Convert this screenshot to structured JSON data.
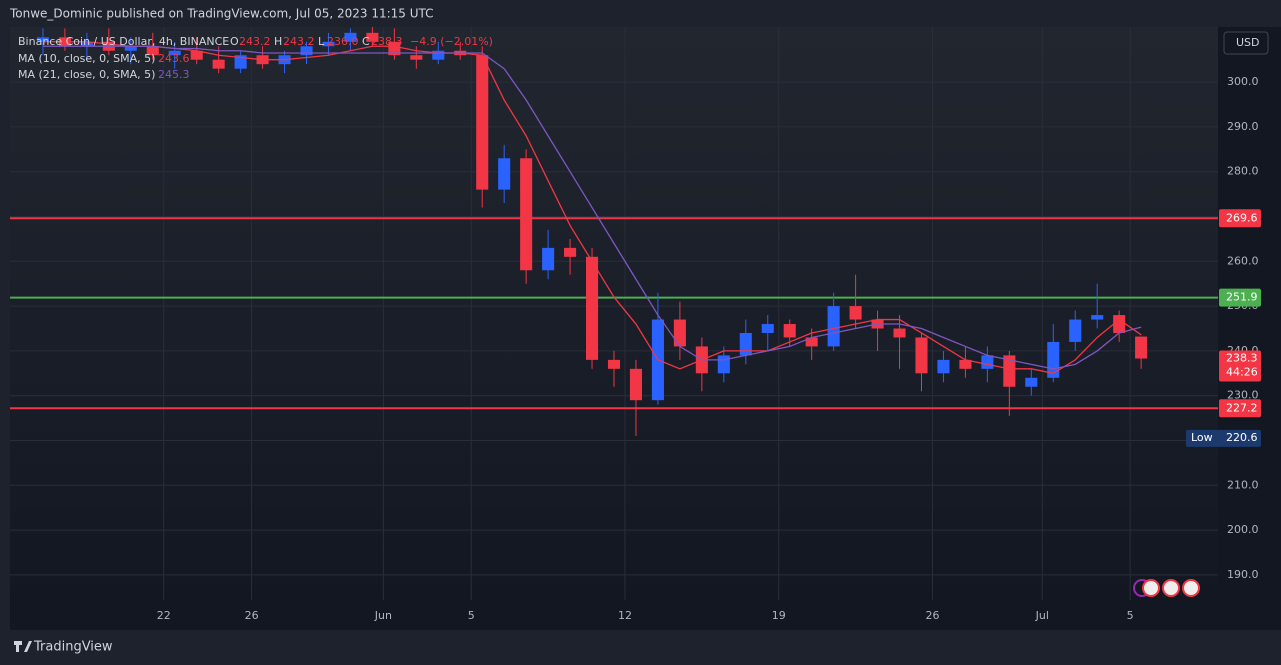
{
  "header": {
    "publisher": "Tonwe_Dominic published on TradingView.com, Jul 05, 2023 11:15 UTC"
  },
  "footer": {
    "brand": "TradingView"
  },
  "chart_data": {
    "type": "candlestick",
    "title": "Binance Coin / US Dollar, 4h, BINANCE",
    "legend": {
      "o_key": "O",
      "o": "243.2",
      "h_key": "H",
      "h": "243.2",
      "l_key": "L",
      "l": "236.0",
      "c_key": "C",
      "c": "238.3",
      "change": "−4.9 (−2.01%)"
    },
    "currency": "USD",
    "x": [
      "2023-05-16",
      "2023-05-17",
      "2023-05-18",
      "2023-05-19",
      "2023-05-20",
      "2023-05-21",
      "2023-05-22",
      "2023-05-23",
      "2023-05-24",
      "2023-05-25",
      "2023-05-26",
      "2023-05-27",
      "2023-05-28",
      "2023-05-29",
      "2023-05-30",
      "2023-05-31",
      "2023-06-01",
      "2023-06-02",
      "2023-06-03",
      "2023-06-04",
      "2023-06-05",
      "2023-06-06",
      "2023-06-07",
      "2023-06-08",
      "2023-06-09",
      "2023-06-10",
      "2023-06-11",
      "2023-06-12",
      "2023-06-13",
      "2023-06-14",
      "2023-06-15",
      "2023-06-16",
      "2023-06-17",
      "2023-06-18",
      "2023-06-19",
      "2023-06-20",
      "2023-06-21",
      "2023-06-22",
      "2023-06-23",
      "2023-06-24",
      "2023-06-25",
      "2023-06-26",
      "2023-06-27",
      "2023-06-28",
      "2023-06-29",
      "2023-06-30",
      "2023-07-01",
      "2023-07-02",
      "2023-07-03",
      "2023-07-04",
      "2023-07-05"
    ],
    "open": [
      309,
      310,
      308,
      309,
      307,
      308,
      306,
      307,
      305,
      303,
      306,
      304,
      306,
      308,
      309,
      311,
      309,
      306,
      305,
      307,
      306,
      276,
      283,
      258,
      263,
      261,
      238,
      236,
      229,
      247,
      241,
      235,
      239,
      244,
      246,
      243,
      241,
      250,
      247,
      245,
      243,
      235,
      238,
      236,
      239,
      232,
      234,
      242,
      247,
      248,
      243.2
    ],
    "high": [
      312,
      312,
      311,
      312,
      310,
      311,
      309,
      310,
      308,
      307,
      308,
      307,
      309,
      311,
      312,
      313,
      312,
      308,
      309,
      309,
      308,
      286,
      285,
      267,
      265,
      263,
      240,
      238,
      253,
      251,
      243,
      241,
      247,
      248,
      247,
      245,
      253,
      257,
      249,
      248,
      244,
      240,
      241,
      241,
      240,
      236,
      246,
      249,
      255,
      249,
      243.2
    ],
    "low": [
      306,
      307,
      305,
      306,
      304,
      305,
      303,
      304,
      302,
      302,
      303,
      302,
      304,
      306,
      307,
      308,
      305,
      303,
      304,
      305,
      272,
      273,
      255,
      256,
      257,
      236,
      232,
      221,
      228,
      238,
      231,
      233,
      237,
      240,
      241,
      238,
      240,
      245,
      240,
      236,
      231,
      233,
      234,
      233,
      225.5,
      230,
      233,
      240,
      245,
      242,
      236
    ],
    "close": [
      310,
      308,
      309,
      307,
      308,
      306,
      307,
      305,
      303,
      306,
      304,
      306,
      308,
      309,
      311,
      309,
      306,
      305,
      307,
      306,
      276,
      283,
      258,
      263,
      261,
      238,
      236,
      229,
      247,
      241,
      235,
      239,
      244,
      246,
      243,
      241,
      250,
      247,
      245,
      243,
      235,
      238,
      236,
      239,
      232,
      234,
      242,
      247,
      248,
      244,
      238.3
    ],
    "up_color": "#2962ff",
    "down_color": "#f23645",
    "series": [
      {
        "name": "MA (10, close, 0, SMA, 5)",
        "color": "#f23645",
        "values": [
          309,
          309,
          309,
          308.5,
          308,
          308,
          307.5,
          307,
          306,
          305.5,
          305,
          305,
          305.5,
          306,
          307,
          308,
          308,
          307,
          306.5,
          306.5,
          306,
          296,
          288,
          278,
          268,
          260,
          252,
          246,
          238,
          236,
          238,
          240,
          240,
          240,
          242,
          244,
          245,
          246,
          247,
          247,
          244,
          241,
          238,
          237,
          236,
          236,
          235,
          238,
          243,
          247,
          243.6
        ]
      },
      {
        "name": "MA (21, close, 0, SMA, 5)",
        "color": "#7e57c2",
        "values": [
          308,
          308,
          308,
          308,
          308,
          308,
          307.5,
          307.5,
          307,
          307,
          306.5,
          306.5,
          306.5,
          306.5,
          306.5,
          306.5,
          306.5,
          306.5,
          306.5,
          306.5,
          306.5,
          303,
          296,
          288,
          280,
          272,
          264,
          256,
          248,
          241,
          238,
          238,
          239,
          240,
          241,
          243,
          244,
          245,
          246,
          246,
          245,
          243,
          241,
          239,
          238,
          237,
          236,
          237,
          240,
          244,
          245.3
        ]
      }
    ],
    "levels": [
      {
        "value": 269.6,
        "color": "#f23645"
      },
      {
        "value": 251.9,
        "color": "#4caf50"
      },
      {
        "value": 227.2,
        "color": "#f23645"
      }
    ],
    "countdown": "44:26",
    "low_marker": {
      "label": "Low",
      "value": 220.6
    },
    "ylim": [
      184.4,
      312.3
    ],
    "yticks": [
      {
        "value": 190,
        "label": "190.0"
      },
      {
        "value": 200,
        "label": "200.0"
      },
      {
        "value": 210,
        "label": "210.0"
      },
      {
        "value": 220,
        "label": "220.0"
      },
      {
        "value": 230,
        "label": "230.0"
      },
      {
        "value": 240,
        "label": "240.0"
      },
      {
        "value": 250,
        "label": "250.0"
      },
      {
        "value": 260,
        "label": "260.0"
      },
      {
        "value": 270,
        "label": "270.0"
      },
      {
        "value": 280,
        "label": "280.0"
      },
      {
        "value": 290,
        "label": "290.0"
      },
      {
        "value": 300,
        "label": "300.0"
      }
    ],
    "xlim": [
      "2023-05-15",
      "2023-07-09"
    ],
    "xticks": [
      {
        "value": "2023-05-22",
        "label": "22"
      },
      {
        "value": "2023-05-26",
        "label": "26"
      },
      {
        "value": "2023-06-01",
        "label": "Jun"
      },
      {
        "value": "2023-06-05",
        "label": "5"
      },
      {
        "value": "2023-06-12",
        "label": "12"
      },
      {
        "value": "2023-06-19",
        "label": "19"
      },
      {
        "value": "2023-06-26",
        "label": "26"
      },
      {
        "value": "2023-07-01",
        "label": "Jul"
      },
      {
        "value": "2023-07-05",
        "label": "5"
      }
    ],
    "grid": true
  }
}
